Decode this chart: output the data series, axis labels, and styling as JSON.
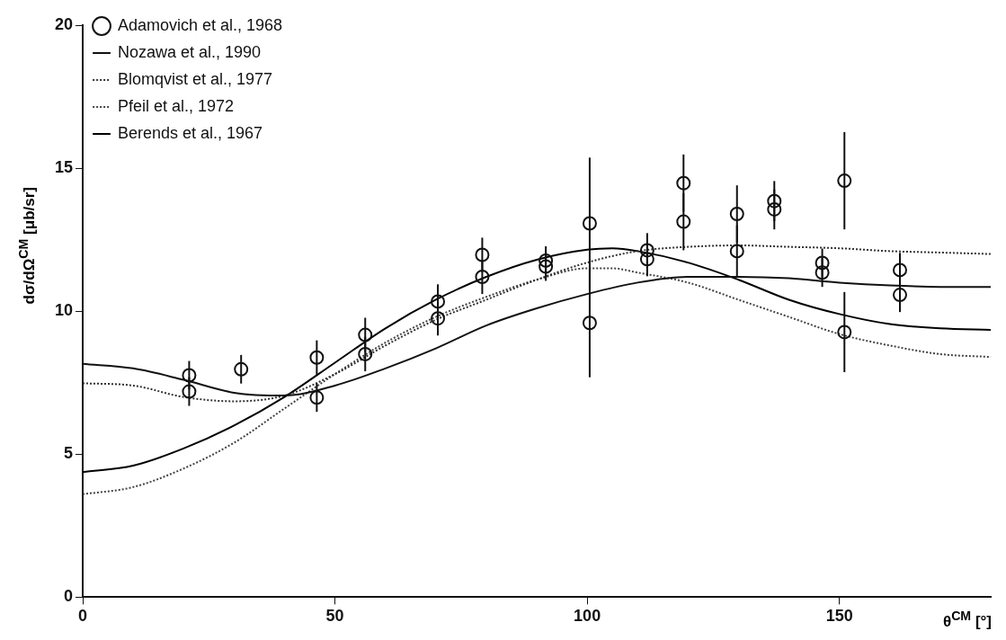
{
  "chart_data": {
    "type": "scatter",
    "xlabel": "θ$^{CM}$ [°]",
    "ylabel": "dσ/dΩ$^{CM}$  [μb/sr]",
    "xlim": [
      0,
      180
    ],
    "xticks": [
      0,
      50,
      100,
      150
    ],
    "ylim": [
      0,
      20
    ],
    "yticks": [
      0,
      5,
      10,
      15,
      20
    ],
    "grid": false,
    "legend": "top left",
    "series": [
      {
        "name": "Adamovich et al., 1968",
        "type": "scatter",
        "marker": "circle",
        "color": "#111111",
        "x": [
          21.1,
          21.1,
          31.4,
          46.4,
          46.4,
          56,
          56,
          70.4,
          70.4,
          79.2,
          79.2,
          91.8,
          91.8,
          100.5,
          100.5,
          111.9,
          111.9,
          119.1,
          119.1,
          129.7,
          129.7,
          137.1,
          137.1,
          146.6,
          146.6,
          151,
          151,
          162,
          162
        ],
        "values": [
          7.76,
          7.19,
          7.97,
          8.38,
          6.98,
          9.17,
          8.5,
          10.34,
          9.75,
          11.97,
          11.2,
          11.77,
          11.56,
          13.07,
          9.59,
          12.13,
          11.82,
          14.48,
          13.13,
          13.4,
          12.1,
          13.85,
          13.56,
          11.69,
          11.35,
          14.56,
          9.27,
          11.44,
          10.57
        ],
        "errors": [
          0.5,
          0.5,
          0.5,
          0.6,
          0.5,
          0.6,
          0.6,
          0.6,
          0.6,
          0.6,
          0.6,
          0.5,
          0.5,
          2.3,
          1.9,
          0.6,
          0.6,
          1.0,
          1.0,
          1.0,
          0.9,
          0.7,
          0.7,
          0.5,
          0.5,
          1.7,
          1.4,
          0.6,
          0.6
        ]
      },
      {
        "name": "Nozawa et al., 1990",
        "type": "line",
        "line_style": "solid",
        "marker": "none",
        "color": "#111111",
        "x": [
          0,
          10,
          20,
          30,
          40,
          50,
          60,
          70,
          80,
          90,
          100,
          110,
          120,
          130,
          140,
          150,
          160,
          170,
          180
        ],
        "values": [
          8.16,
          8.0,
          7.6,
          7.15,
          7.05,
          7.4,
          8.0,
          8.7,
          9.5,
          10.1,
          10.6,
          11.0,
          11.2,
          11.2,
          11.15,
          11.0,
          10.9,
          10.85,
          10.85
        ]
      },
      {
        "name": "Blomqvist et al., 1977",
        "type": "line",
        "line_style": "dotted",
        "marker": "none",
        "color": "#333333",
        "x": [
          0,
          10,
          20,
          30,
          40,
          50,
          60,
          70,
          80,
          90,
          100,
          110,
          120,
          130,
          140,
          150,
          160,
          170,
          180
        ],
        "values": [
          7.48,
          7.4,
          7.0,
          6.85,
          7.05,
          7.8,
          8.8,
          9.7,
          10.4,
          11.1,
          11.7,
          12.1,
          12.25,
          12.3,
          12.25,
          12.2,
          12.1,
          12.05,
          12.0
        ]
      },
      {
        "name": "Pfeil et al., 1972",
        "type": "line",
        "line_style": "dotted",
        "marker": "none",
        "color": "#444444",
        "x": [
          0,
          10,
          20,
          30,
          40,
          50,
          60,
          70,
          80,
          90,
          100,
          105,
          110,
          120,
          130,
          140,
          150,
          160,
          170,
          180
        ],
        "values": [
          3.6,
          3.85,
          4.5,
          5.4,
          6.6,
          7.8,
          8.9,
          9.8,
          10.5,
          11.1,
          11.5,
          11.5,
          11.35,
          11.0,
          10.4,
          9.8,
          9.2,
          8.8,
          8.5,
          8.4
        ]
      },
      {
        "name": "Berends et al., 1967",
        "type": "line",
        "line_style": "solid",
        "marker": "none",
        "color": "#000000",
        "x": [
          0,
          10,
          20,
          30,
          40,
          50,
          60,
          70,
          80,
          90,
          100,
          105,
          110,
          120,
          130,
          140,
          150,
          160,
          170,
          180
        ],
        "values": [
          4.37,
          4.6,
          5.2,
          6.0,
          7.0,
          8.2,
          9.4,
          10.4,
          11.2,
          11.8,
          12.15,
          12.2,
          12.1,
          11.7,
          11.1,
          10.4,
          9.9,
          9.55,
          9.4,
          9.35
        ]
      }
    ]
  }
}
